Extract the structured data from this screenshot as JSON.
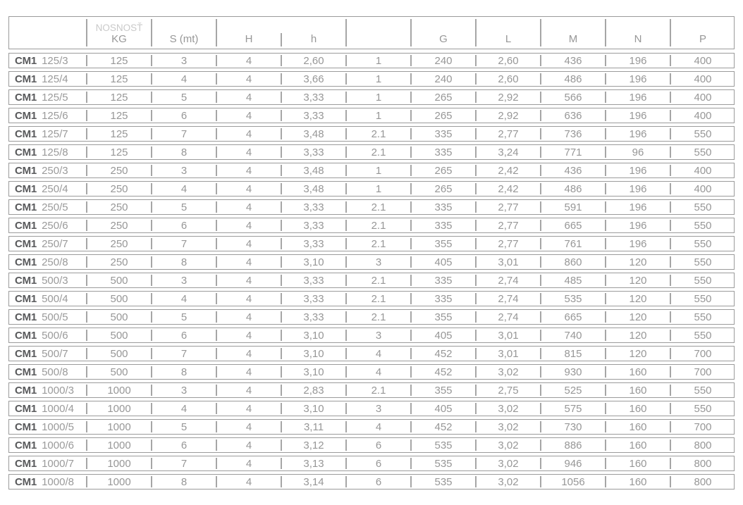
{
  "colors": {
    "background": "#ffffff",
    "border": "#9b9b9b",
    "divider": "#a6a6a6",
    "value_text": "#979797",
    "brand_text": "#595a5c",
    "light_header_text": "#c9c9c9"
  },
  "table": {
    "brand_prefix": "CM1",
    "columns": [
      {
        "key": "model",
        "label": ""
      },
      {
        "key": "kg",
        "label_top": "NOSNOSŤ",
        "label": "KG"
      },
      {
        "key": "s-mt",
        "label": "S (mt)"
      },
      {
        "key": "h-upper",
        "label": "H"
      },
      {
        "key": "h-lower",
        "label": "h"
      },
      {
        "key": "falls",
        "label": ""
      },
      {
        "key": "g",
        "label": "G"
      },
      {
        "key": "l",
        "label": "L"
      },
      {
        "key": "m",
        "label": "M"
      },
      {
        "key": "n",
        "label": "N"
      },
      {
        "key": "p",
        "label": "P"
      }
    ],
    "rows": [
      {
        "brand": "CM1",
        "model": "125/3",
        "cells": [
          "125",
          "3",
          "4",
          "2,60",
          "1",
          "240",
          "2,60",
          "436",
          "196",
          "400"
        ]
      },
      {
        "brand": "CM1",
        "model": "125/4",
        "cells": [
          "125",
          "4",
          "4",
          "3,66",
          "1",
          "240",
          "2,60",
          "486",
          "196",
          "400"
        ]
      },
      {
        "brand": "CM1",
        "model": "125/5",
        "cells": [
          "125",
          "5",
          "4",
          "3,33",
          "1",
          "265",
          "2,92",
          "566",
          "196",
          "400"
        ]
      },
      {
        "brand": "CM1",
        "model": "125/6",
        "cells": [
          "125",
          "6",
          "4",
          "3,33",
          "1",
          "265",
          "2,92",
          "636",
          "196",
          "400"
        ]
      },
      {
        "brand": "CM1",
        "model": "125/7",
        "cells": [
          "125",
          "7",
          "4",
          "3,48",
          "2.1",
          "335",
          "2,77",
          "736",
          "196",
          "550"
        ]
      },
      {
        "brand": "CM1",
        "model": "125/8",
        "cells": [
          "125",
          "8",
          "4",
          "3,33",
          "2.1",
          "335",
          "3,24",
          "771",
          "96",
          "550"
        ]
      },
      {
        "brand": "CM1",
        "model": "250/3",
        "cells": [
          "250",
          "3",
          "4",
          "3,48",
          "1",
          "265",
          "2,42",
          "436",
          "196",
          "400"
        ]
      },
      {
        "brand": "CM1",
        "model": "250/4",
        "cells": [
          "250",
          "4",
          "4",
          "3,48",
          "1",
          "265",
          "2,42",
          "486",
          "196",
          "400"
        ]
      },
      {
        "brand": "CM1",
        "model": "250/5",
        "cells": [
          "250",
          "5",
          "4",
          "3,33",
          "2.1",
          "335",
          "2,77",
          "591",
          "196",
          "550"
        ]
      },
      {
        "brand": "CM1",
        "model": "250/6",
        "cells": [
          "250",
          "6",
          "4",
          "3,33",
          "2.1",
          "335",
          "2,77",
          "665",
          "196",
          "550"
        ]
      },
      {
        "brand": "CM1",
        "model": "250/7",
        "cells": [
          "250",
          "7",
          "4",
          "3,33",
          "2.1",
          "355",
          "2,77",
          "761",
          "196",
          "550"
        ]
      },
      {
        "brand": "CM1",
        "model": "250/8",
        "cells": [
          "250",
          "8",
          "4",
          "3,10",
          "3",
          "405",
          "3,01",
          "860",
          "120",
          "550"
        ]
      },
      {
        "brand": "CM1",
        "model": "500/3",
        "cells": [
          "500",
          "3",
          "4",
          "3,33",
          "2.1",
          "335",
          "2,74",
          "485",
          "120",
          "550"
        ]
      },
      {
        "brand": "CM1",
        "model": "500/4",
        "cells": [
          "500",
          "4",
          "4",
          "3,33",
          "2.1",
          "335",
          "2,74",
          "535",
          "120",
          "550"
        ]
      },
      {
        "brand": "CM1",
        "model": "500/5",
        "cells": [
          "500",
          "5",
          "4",
          "3,33",
          "2.1",
          "355",
          "2,74",
          "665",
          "120",
          "550"
        ]
      },
      {
        "brand": "CM1",
        "model": "500/6",
        "cells": [
          "500",
          "6",
          "4",
          "3,10",
          "3",
          "405",
          "3,01",
          "740",
          "120",
          "550"
        ]
      },
      {
        "brand": "CM1",
        "model": "500/7",
        "cells": [
          "500",
          "7",
          "4",
          "3,10",
          "4",
          "452",
          "3,01",
          "815",
          "120",
          "700"
        ]
      },
      {
        "brand": "CM1",
        "model": "500/8",
        "cells": [
          "500",
          "8",
          "4",
          "3,10",
          "4",
          "452",
          "3,02",
          "930",
          "160",
          "700"
        ]
      },
      {
        "brand": "CM1",
        "model": "1000/3",
        "cells": [
          "1000",
          "3",
          "4",
          "2,83",
          "2.1",
          "355",
          "2,75",
          "525",
          "160",
          "550"
        ]
      },
      {
        "brand": "CM1",
        "model": "1000/4",
        "cells": [
          "1000",
          "4",
          "4",
          "3,10",
          "3",
          "405",
          "3,02",
          "575",
          "160",
          "550"
        ]
      },
      {
        "brand": "CM1",
        "model": "1000/5",
        "cells": [
          "1000",
          "5",
          "4",
          "3,11",
          "4",
          "452",
          "3,02",
          "730",
          "160",
          "700"
        ]
      },
      {
        "brand": "CM1",
        "model": "1000/6",
        "cells": [
          "1000",
          "6",
          "4",
          "3,12",
          "6",
          "535",
          "3,02",
          "886",
          "160",
          "800"
        ]
      },
      {
        "brand": "CM1",
        "model": "1000/7",
        "cells": [
          "1000",
          "7",
          "4",
          "3,13",
          "6",
          "535",
          "3,02",
          "946",
          "160",
          "800"
        ]
      },
      {
        "brand": "CM1",
        "model": "1000/8",
        "cells": [
          "1000",
          "8",
          "4",
          "3,14",
          "6",
          "535",
          "3,02",
          "1056",
          "160",
          "800"
        ]
      }
    ]
  }
}
